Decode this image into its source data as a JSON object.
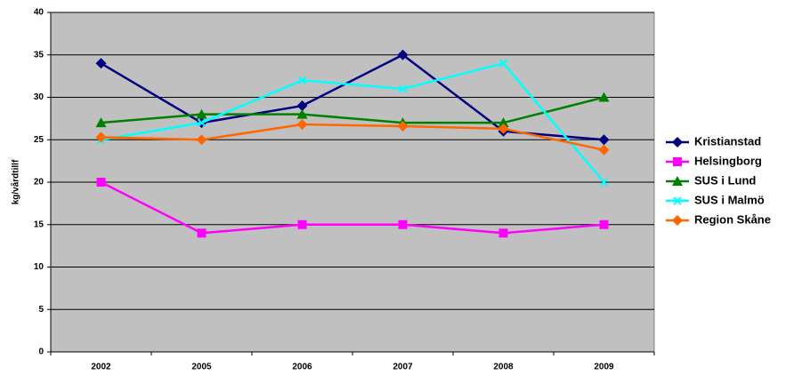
{
  "chart_data": {
    "type": "line",
    "y_label": "kg/vårdtillf",
    "categories": [
      "2002",
      "2005",
      "2006",
      "2007",
      "2008",
      "2009"
    ],
    "series": [
      {
        "name": "Kristianstad",
        "color": "#000080",
        "marker": "diamond",
        "values": [
          34,
          27,
          29,
          35,
          26,
          25
        ]
      },
      {
        "name": "Helsingborg",
        "color": "#ff00ff",
        "marker": "square",
        "values": [
          20,
          14,
          15,
          15,
          14,
          15
        ]
      },
      {
        "name": "SUS i Lund",
        "color": "#008000",
        "marker": "triangle",
        "values": [
          27,
          28,
          28,
          27,
          27,
          30
        ]
      },
      {
        "name": "SUS i Malmö",
        "color": "#00ffff",
        "marker": "x",
        "values": [
          25,
          27,
          32,
          31,
          34,
          20
        ]
      },
      {
        "name": "Region Skåne",
        "color": "#ff6600",
        "marker": "diamond",
        "values": [
          25.3,
          25,
          26.8,
          26.6,
          26.3,
          23.8
        ]
      }
    ],
    "ylim": [
      0,
      40
    ],
    "yticks": [
      0,
      5,
      10,
      15,
      20,
      25,
      30,
      35,
      40
    ],
    "grid": true,
    "legend": "right"
  }
}
